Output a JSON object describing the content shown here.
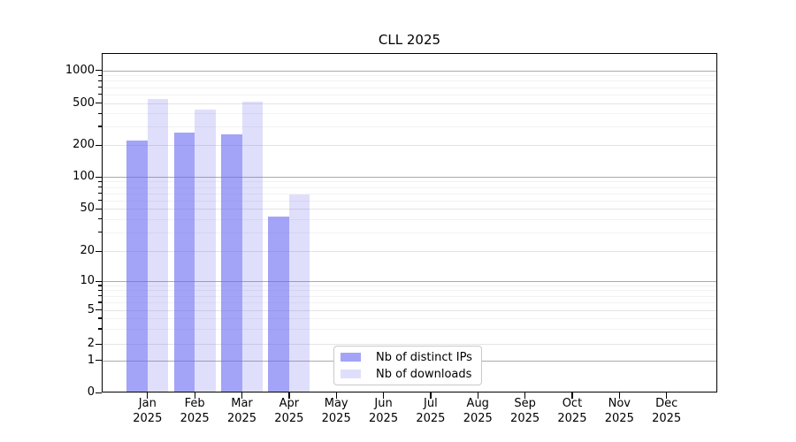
{
  "chart_data": {
    "type": "bar",
    "title": "CLL 2025",
    "categories": [
      "Jan",
      "Feb",
      "Mar",
      "Apr",
      "May",
      "Jun",
      "Jul",
      "Aug",
      "Sep",
      "Oct",
      "Nov",
      "Dec"
    ],
    "x_tick_year": "2025",
    "series": [
      {
        "name": "Nb of distinct IPs",
        "color": "rgba(102,102,242,0.60)",
        "values": [
          220,
          260,
          250,
          42,
          0,
          0,
          0,
          0,
          0,
          0,
          0,
          0
        ]
      },
      {
        "name": "Nb of downloads",
        "color": "rgba(102,102,242,0.21)",
        "values": [
          540,
          430,
          515,
          68,
          0,
          0,
          0,
          0,
          0,
          0,
          0,
          0
        ]
      }
    ],
    "y_ticks": [
      0,
      1,
      2,
      5,
      10,
      20,
      50,
      100,
      200,
      500,
      1000
    ],
    "y_scale": "symlog",
    "ylim": [
      0,
      1400
    ],
    "xlabel": "",
    "ylabel": "",
    "grid": true,
    "legend": {
      "position": "inside-bottom-center",
      "entries": [
        "Nb of distinct IPs",
        "Nb of downloads"
      ]
    },
    "colors": {
      "bar_base": "#6666f2",
      "grid_decade": "#ababab",
      "grid_major": "#e4e4e4",
      "grid_minor": "#f2f2f2",
      "axis": "#000000",
      "text": "#000000"
    }
  }
}
